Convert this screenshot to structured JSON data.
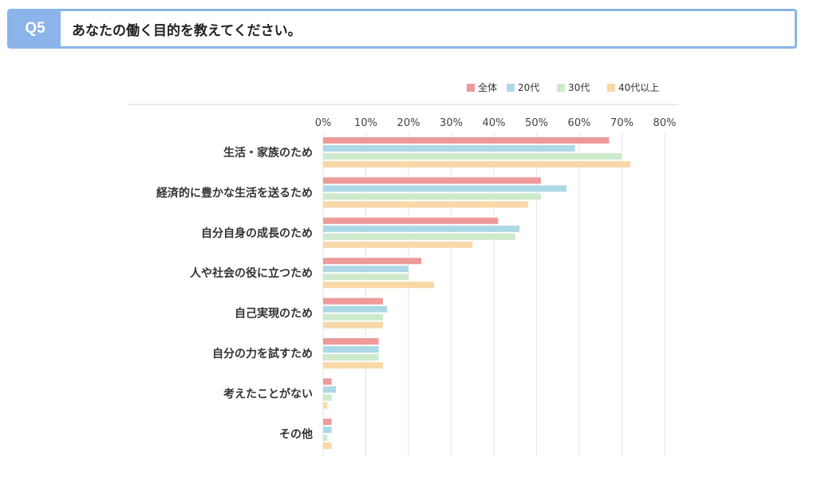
{
  "question": {
    "badge": "Q5",
    "text": "あなたの働く目的を教えてください。"
  },
  "chart_data": {
    "type": "bar",
    "orientation": "horizontal",
    "categories": [
      "生活・家族のため",
      "経済的に豊かな生活を送るため",
      "自分自身の成長のため",
      "人や社会の役に立つため",
      "自己実現のため",
      "自分の力を試すため",
      "考えたことがない",
      "その他"
    ],
    "series": [
      {
        "name": "全体",
        "color": "#ee9a9a",
        "values": [
          67,
          51,
          41,
          23,
          14,
          13,
          2,
          2
        ]
      },
      {
        "name": "20代",
        "color": "#add8e6",
        "values": [
          59,
          57,
          46,
          20,
          15,
          13,
          3,
          2
        ]
      },
      {
        "name": "30代",
        "color": "#cdeacd",
        "values": [
          70,
          51,
          45,
          20,
          14,
          13,
          2,
          1
        ]
      },
      {
        "name": "40代以上",
        "color": "#f8d8a8",
        "values": [
          72,
          48,
          35,
          26,
          14,
          14,
          1,
          2
        ]
      }
    ],
    "x_ticks": [
      "0%",
      "10%",
      "20%",
      "30%",
      "40%",
      "50%",
      "60%",
      "70%",
      "80%"
    ],
    "xlim": [
      0,
      80
    ],
    "grid": true,
    "legend_position": "top-right"
  }
}
